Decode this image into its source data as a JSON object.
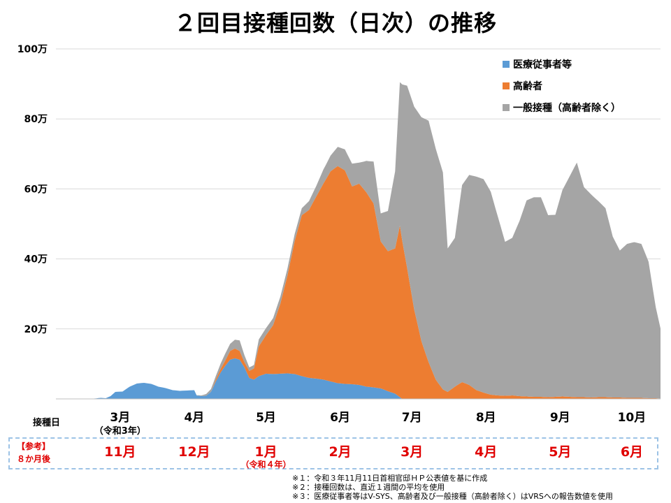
{
  "chart_data": {
    "type": "area",
    "title": "２回目接種回数（日次）の推移",
    "ylim": [
      0,
      1000000
    ],
    "yticks": [
      {
        "value": 200000,
        "label": "20万"
      },
      {
        "value": 400000,
        "label": "40万"
      },
      {
        "value": 600000,
        "label": "60万"
      },
      {
        "value": 800000,
        "label": "80万"
      },
      {
        "value": 1000000,
        "label": "100万"
      }
    ],
    "grid": true,
    "legend_position": "top-right",
    "x_axis_label": "接種日",
    "x_day_range": [
      0,
      247
    ],
    "months": [
      {
        "label": "3月",
        "sub": "（令和3年）",
        "day": 6
      },
      {
        "label": "4月",
        "sub": "",
        "day": 37
      },
      {
        "label": "5月",
        "sub": "",
        "day": 67
      },
      {
        "label": "6月",
        "sub": "",
        "day": 98
      },
      {
        "label": "7月",
        "sub": "",
        "day": 128
      },
      {
        "label": "8月",
        "sub": "",
        "day": 159
      },
      {
        "label": "9月",
        "sub": "",
        "day": 190
      },
      {
        "label": "10月",
        "sub": "",
        "day": 220
      }
    ],
    "reference": {
      "label_line1": "【参考】",
      "label_line2": "８か月後",
      "months": [
        {
          "label": "11月",
          "sub": "",
          "day": 6
        },
        {
          "label": "12月",
          "sub": "",
          "day": 37
        },
        {
          "label": "1月",
          "sub": "（令和４年）",
          "day": 67
        },
        {
          "label": "2月",
          "sub": "",
          "day": 98
        },
        {
          "label": "3月",
          "sub": "",
          "day": 128
        },
        {
          "label": "4月",
          "sub": "",
          "day": 159
        },
        {
          "label": "5月",
          "sub": "",
          "day": 190
        },
        {
          "label": "6月",
          "sub": "",
          "day": 220
        }
      ]
    },
    "series": [
      {
        "name": "医療従事者等",
        "color": "#5b9bd5",
        "points": [
          [
            0,
            0
          ],
          [
            6,
            0
          ],
          [
            10,
            1000
          ],
          [
            13,
            3000
          ],
          [
            15,
            2000
          ],
          [
            17,
            8000
          ],
          [
            19,
            20000
          ],
          [
            22,
            21000
          ],
          [
            25,
            35000
          ],
          [
            28,
            44000
          ],
          [
            31,
            46000
          ],
          [
            34,
            43000
          ],
          [
            37,
            35000
          ],
          [
            40,
            31000
          ],
          [
            43,
            25000
          ],
          [
            46,
            23000
          ],
          [
            49,
            24000
          ],
          [
            52,
            25000
          ],
          [
            53,
            10000
          ],
          [
            55,
            8000
          ],
          [
            57,
            9000
          ],
          [
            59,
            20000
          ],
          [
            61,
            50000
          ],
          [
            63,
            75000
          ],
          [
            65,
            95000
          ],
          [
            67,
            112000
          ],
          [
            69,
            116000
          ],
          [
            71,
            112000
          ],
          [
            73,
            90000
          ],
          [
            75,
            60000
          ],
          [
            77,
            55000
          ],
          [
            79,
            65000
          ],
          [
            82,
            72000
          ],
          [
            85,
            71000
          ],
          [
            88,
            72000
          ],
          [
            91,
            73000
          ],
          [
            94,
            71000
          ],
          [
            97,
            65000
          ],
          [
            100,
            60000
          ],
          [
            103,
            58000
          ],
          [
            106,
            55000
          ],
          [
            109,
            50000
          ],
          [
            112,
            45000
          ],
          [
            115,
            43000
          ],
          [
            118,
            42000
          ],
          [
            121,
            40000
          ],
          [
            124,
            35000
          ],
          [
            127,
            33000
          ],
          [
            130,
            30000
          ],
          [
            133,
            22000
          ],
          [
            136,
            15000
          ],
          [
            138,
            5000
          ],
          [
            139,
            0
          ],
          [
            247,
            0
          ]
        ]
      },
      {
        "name": "高齢者",
        "color": "#ed7d31",
        "points": [
          [
            0,
            0
          ],
          [
            59,
            0
          ],
          [
            61,
            5000
          ],
          [
            63,
            10000
          ],
          [
            65,
            15000
          ],
          [
            67,
            25000
          ],
          [
            69,
            28000
          ],
          [
            71,
            25000
          ],
          [
            73,
            15000
          ],
          [
            75,
            20000
          ],
          [
            77,
            32000
          ],
          [
            79,
            85000
          ],
          [
            82,
            110000
          ],
          [
            85,
            140000
          ],
          [
            88,
            200000
          ],
          [
            91,
            280000
          ],
          [
            94,
            380000
          ],
          [
            97,
            460000
          ],
          [
            100,
            480000
          ],
          [
            103,
            520000
          ],
          [
            106,
            560000
          ],
          [
            109,
            600000
          ],
          [
            112,
            620000
          ],
          [
            115,
            610000
          ],
          [
            118,
            565000
          ],
          [
            121,
            575000
          ],
          [
            124,
            555000
          ],
          [
            127,
            525000
          ],
          [
            130,
            420000
          ],
          [
            133,
            400000
          ],
          [
            136,
            415000
          ],
          [
            138,
            490000
          ],
          [
            141,
            375000
          ],
          [
            144,
            255000
          ],
          [
            147,
            165000
          ],
          [
            150,
            105000
          ],
          [
            153,
            55000
          ],
          [
            156,
            27000
          ],
          [
            158,
            20000
          ],
          [
            161,
            35000
          ],
          [
            164,
            48000
          ],
          [
            167,
            40000
          ],
          [
            170,
            25000
          ],
          [
            173,
            18000
          ],
          [
            176,
            12000
          ],
          [
            179,
            10000
          ],
          [
            182,
            9000
          ],
          [
            185,
            10000
          ],
          [
            188,
            8000
          ],
          [
            191,
            7000
          ],
          [
            194,
            6000
          ],
          [
            197,
            6000
          ],
          [
            200,
            5000
          ],
          [
            203,
            6000
          ],
          [
            206,
            7000
          ],
          [
            209,
            6000
          ],
          [
            212,
            5000
          ],
          [
            215,
            5000
          ],
          [
            218,
            4000
          ],
          [
            221,
            5000
          ],
          [
            224,
            5000
          ],
          [
            227,
            4000
          ],
          [
            230,
            4000
          ],
          [
            233,
            3000
          ],
          [
            236,
            3000
          ],
          [
            239,
            3000
          ],
          [
            242,
            2000
          ],
          [
            245,
            2000
          ],
          [
            247,
            1000
          ]
        ]
      },
      {
        "name": "一般接種（高齢者除く）",
        "color": "#a5a5a5",
        "points": [
          [
            0,
            0
          ],
          [
            52,
            0
          ],
          [
            55,
            2000
          ],
          [
            59,
            8000
          ],
          [
            61,
            10000
          ],
          [
            63,
            15000
          ],
          [
            65,
            20000
          ],
          [
            67,
            20000
          ],
          [
            69,
            25000
          ],
          [
            71,
            30000
          ],
          [
            73,
            20000
          ],
          [
            75,
            10000
          ],
          [
            77,
            10000
          ],
          [
            79,
            20000
          ],
          [
            82,
            20000
          ],
          [
            85,
            20000
          ],
          [
            88,
            20000
          ],
          [
            91,
            20000
          ],
          [
            94,
            20000
          ],
          [
            97,
            20000
          ],
          [
            100,
            25000
          ],
          [
            103,
            30000
          ],
          [
            106,
            40000
          ],
          [
            109,
            45000
          ],
          [
            112,
            55000
          ],
          [
            115,
            60000
          ],
          [
            118,
            65000
          ],
          [
            121,
            60000
          ],
          [
            124,
            90000
          ],
          [
            127,
            120000
          ],
          [
            130,
            80000
          ],
          [
            133,
            115000
          ],
          [
            136,
            220000
          ],
          [
            138,
            410000
          ],
          [
            141,
            520000
          ],
          [
            144,
            580000
          ],
          [
            147,
            640000
          ],
          [
            150,
            690000
          ],
          [
            153,
            660000
          ],
          [
            156,
            620000
          ],
          [
            158,
            410000
          ],
          [
            161,
            425000
          ],
          [
            164,
            563000
          ],
          [
            167,
            600000
          ],
          [
            170,
            610000
          ],
          [
            173,
            610000
          ],
          [
            176,
            580000
          ],
          [
            179,
            510000
          ],
          [
            182,
            440000
          ],
          [
            185,
            450000
          ],
          [
            188,
            500000
          ],
          [
            191,
            560000
          ],
          [
            194,
            570000
          ],
          [
            197,
            570000
          ],
          [
            200,
            520000
          ],
          [
            203,
            520000
          ],
          [
            206,
            590000
          ],
          [
            209,
            630000
          ],
          [
            212,
            670000
          ],
          [
            215,
            600000
          ],
          [
            218,
            580000
          ],
          [
            221,
            560000
          ],
          [
            224,
            540000
          ],
          [
            227,
            460000
          ],
          [
            230,
            420000
          ],
          [
            233,
            440000
          ],
          [
            236,
            445000
          ],
          [
            239,
            440000
          ],
          [
            242,
            390000
          ],
          [
            245,
            260000
          ],
          [
            247,
            200000
          ]
        ]
      }
    ]
  },
  "notes": [
    "※１：令和３年11月11日首相官邸ＨＰ公表値を基に作成",
    "※２：接種回数は、直近１週間の平均を使用",
    "※３：医療従事者等はV-SYS、高齢者及び一般接種（高齢者除く）はVRSへの報告数値を使用"
  ]
}
